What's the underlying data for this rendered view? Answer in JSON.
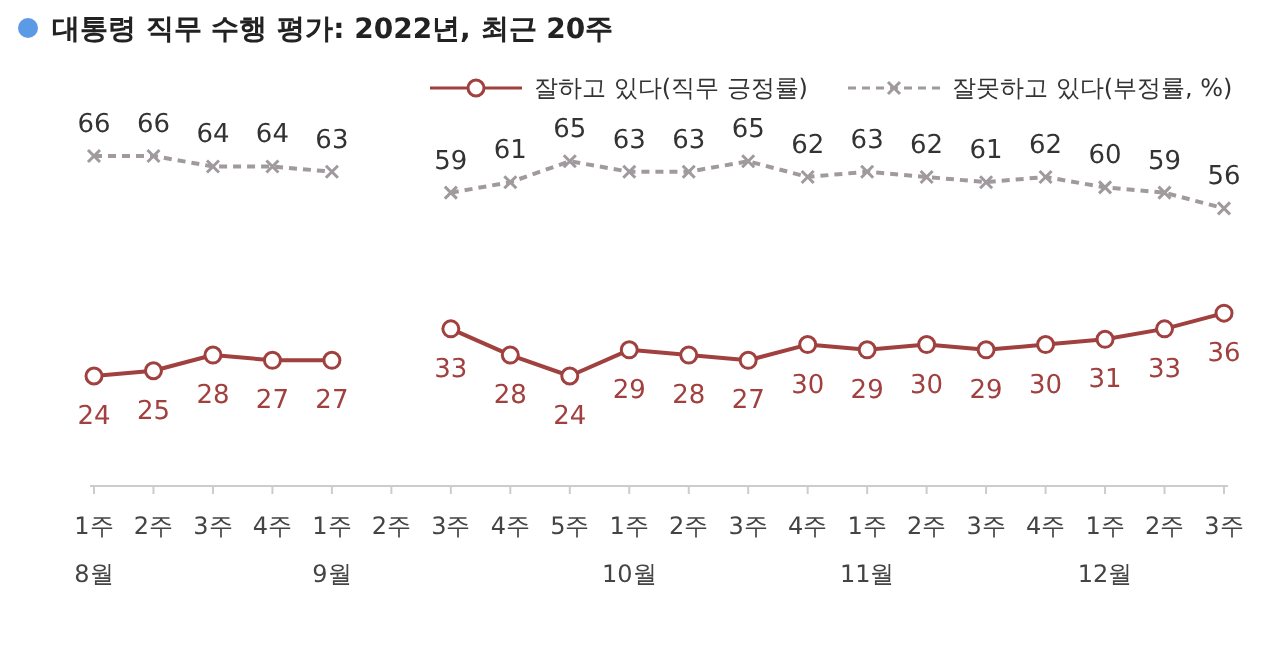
{
  "chart_data": {
    "type": "line",
    "title": "대통령 직무 수행 평가: 2022년, 최근 20주",
    "categories": [
      "1주\n8월",
      "2주",
      "3주",
      "4주",
      "1주\n9월",
      "2주",
      "3주",
      "4주",
      "5주",
      "1주\n10월",
      "2주",
      "3주",
      "4주",
      "1주\n11월",
      "2주",
      "3주",
      "4주",
      "1주\n12월",
      "2주",
      "3주"
    ],
    "series": [
      {
        "name": "잘하고 있다(직무 긍정률)",
        "color": "#a0403f",
        "marker": "circle",
        "line_style": "solid",
        "values": [
          24,
          25,
          28,
          27,
          27,
          null,
          33,
          28,
          24,
          29,
          28,
          27,
          30,
          29,
          30,
          29,
          30,
          31,
          33,
          36
        ]
      },
      {
        "name": "잘못하고 있다(부정률, %)",
        "color": "#a09a9e",
        "marker": "cross",
        "line_style": "dashed",
        "values": [
          66,
          66,
          64,
          64,
          63,
          null,
          59,
          61,
          65,
          63,
          63,
          65,
          62,
          63,
          62,
          61,
          62,
          60,
          59,
          56
        ]
      }
    ],
    "data_labels": true,
    "legend": "top"
  }
}
